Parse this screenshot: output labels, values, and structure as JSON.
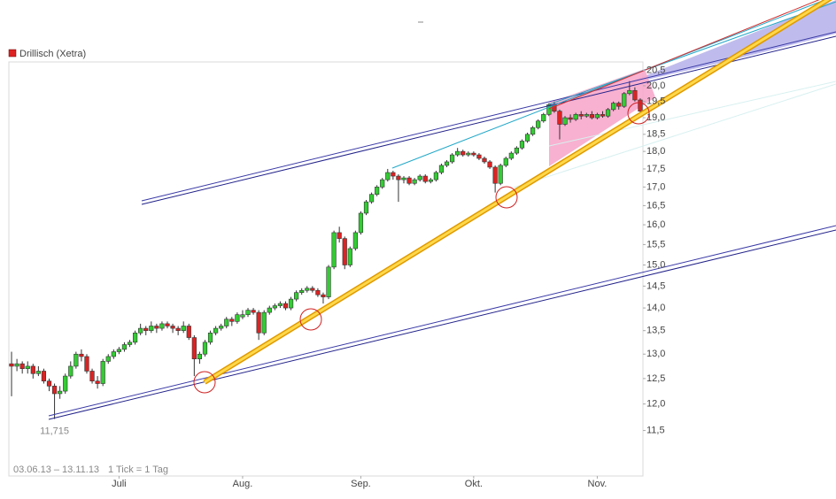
{
  "chart_data": {
    "type": "candlestick",
    "series_name": "Drillisch (Xetra)",
    "legend_color": "#dd2222",
    "up_color": "#33cc33",
    "down_color": "#dd2222",
    "date_range": "03.06.13 – 13.11.13",
    "tick_note": "1 Tick = 1 Tag",
    "log_scale": true,
    "ylim": [
      10.69,
      20.78
    ],
    "yticks": [
      {
        "value": 11.5,
        "label": "11,5"
      },
      {
        "value": 12,
        "label": "12,0"
      },
      {
        "value": 12.5,
        "label": "12,5"
      },
      {
        "value": 13,
        "label": "13,0"
      },
      {
        "value": 13.5,
        "label": "13,5"
      },
      {
        "value": 14,
        "label": "14,0"
      },
      {
        "value": 14.5,
        "label": "14,5"
      },
      {
        "value": 15,
        "label": "15,0"
      },
      {
        "value": 15.5,
        "label": "15,5"
      },
      {
        "value": 16,
        "label": "16,0"
      },
      {
        "value": 16.5,
        "label": "16,5"
      },
      {
        "value": 17,
        "label": "17,0"
      },
      {
        "value": 17.5,
        "label": "17,5"
      },
      {
        "value": 18,
        "label": "18,0"
      },
      {
        "value": 18.5,
        "label": "18,5"
      },
      {
        "value": 19,
        "label": "19,0"
      },
      {
        "value": 19.5,
        "label": "19,5"
      },
      {
        "value": 20,
        "label": "20,0"
      },
      {
        "value": 20.5,
        "label": "20,5"
      }
    ],
    "xticks": [
      {
        "value": "2013-07-01",
        "label": "Juli"
      },
      {
        "value": "2013-08-01",
        "label": "Aug."
      },
      {
        "value": "2013-09-02",
        "label": "Sep."
      },
      {
        "value": "2013-10-01",
        "label": "Okt."
      },
      {
        "value": "2013-11-01",
        "label": "Nov."
      }
    ],
    "annotations": [
      {
        "label": "11,715",
        "value": 11.715,
        "x": "2013-06-13"
      }
    ],
    "x": [
      "2013-06-03",
      "2013-06-04",
      "2013-06-05",
      "2013-06-06",
      "2013-06-07",
      "2013-06-10",
      "2013-06-11",
      "2013-06-12",
      "2013-06-13",
      "2013-06-14",
      "2013-06-17",
      "2013-06-18",
      "2013-06-19",
      "2013-06-20",
      "2013-06-21",
      "2013-06-24",
      "2013-06-25",
      "2013-06-26",
      "2013-06-27",
      "2013-06-28",
      "2013-07-01",
      "2013-07-02",
      "2013-07-03",
      "2013-07-04",
      "2013-07-05",
      "2013-07-08",
      "2013-07-09",
      "2013-07-10",
      "2013-07-11",
      "2013-07-12",
      "2013-07-15",
      "2013-07-16",
      "2013-07-17",
      "2013-07-18",
      "2013-07-19",
      "2013-07-22",
      "2013-07-23",
      "2013-07-24",
      "2013-07-25",
      "2013-07-26",
      "2013-07-29",
      "2013-07-30",
      "2013-07-31",
      "2013-08-01",
      "2013-08-02",
      "2013-08-05",
      "2013-08-06",
      "2013-08-07",
      "2013-08-08",
      "2013-08-09",
      "2013-08-12",
      "2013-08-13",
      "2013-08-14",
      "2013-08-15",
      "2013-08-16",
      "2013-08-19",
      "2013-08-20",
      "2013-08-21",
      "2013-08-22",
      "2013-08-23",
      "2013-08-26",
      "2013-08-27",
      "2013-08-28",
      "2013-08-29",
      "2013-08-30",
      "2013-09-02",
      "2013-09-03",
      "2013-09-04",
      "2013-09-05",
      "2013-09-06",
      "2013-09-09",
      "2013-09-10",
      "2013-09-11",
      "2013-09-12",
      "2013-09-13",
      "2013-09-16",
      "2013-09-17",
      "2013-09-18",
      "2013-09-19",
      "2013-09-20",
      "2013-09-23",
      "2013-09-24",
      "2013-09-25",
      "2013-09-26",
      "2013-09-27",
      "2013-09-30",
      "2013-10-01",
      "2013-10-02",
      "2013-10-03",
      "2013-10-04",
      "2013-10-07",
      "2013-10-08",
      "2013-10-09",
      "2013-10-10",
      "2013-10-11",
      "2013-10-14",
      "2013-10-15",
      "2013-10-16",
      "2013-10-17",
      "2013-10-18",
      "2013-10-21",
      "2013-10-22",
      "2013-10-23",
      "2013-10-24",
      "2013-10-25",
      "2013-10-28",
      "2013-10-29",
      "2013-10-30",
      "2013-10-31",
      "2013-11-01",
      "2013-11-04",
      "2013-11-05",
      "2013-11-06",
      "2013-11-07",
      "2013-11-08",
      "2013-11-11",
      "2013-11-12",
      "2013-11-13"
    ],
    "ohlc": [
      [
        12.8,
        13.05,
        12.15,
        12.75
      ],
      [
        12.75,
        12.9,
        12.65,
        12.8
      ],
      [
        12.8,
        12.85,
        12.6,
        12.7
      ],
      [
        12.7,
        12.85,
        12.6,
        12.75
      ],
      [
        12.75,
        12.8,
        12.5,
        12.6
      ],
      [
        12.6,
        12.75,
        12.55,
        12.65
      ],
      [
        12.65,
        12.7,
        12.4,
        12.45
      ],
      [
        12.45,
        12.5,
        12.25,
        12.35
      ],
      [
        12.35,
        12.4,
        11.715,
        12.2
      ],
      [
        12.2,
        12.35,
        12.1,
        12.25
      ],
      [
        12.25,
        12.6,
        12.2,
        12.55
      ],
      [
        12.55,
        12.85,
        12.5,
        12.75
      ],
      [
        12.75,
        13.05,
        12.7,
        13.0
      ],
      [
        13.0,
        13.1,
        12.85,
        12.95
      ],
      [
        12.95,
        13.0,
        12.6,
        12.65
      ],
      [
        12.65,
        12.7,
        12.4,
        12.45
      ],
      [
        12.45,
        12.55,
        12.3,
        12.4
      ],
      [
        12.4,
        12.9,
        12.35,
        12.85
      ],
      [
        12.85,
        13.0,
        12.8,
        12.95
      ],
      [
        12.95,
        13.1,
        12.9,
        13.05
      ],
      [
        13.05,
        13.15,
        13.0,
        13.1
      ],
      [
        13.1,
        13.25,
        13.05,
        13.2
      ],
      [
        13.2,
        13.3,
        13.15,
        13.25
      ],
      [
        13.25,
        13.5,
        13.2,
        13.45
      ],
      [
        13.45,
        13.65,
        13.4,
        13.55
      ],
      [
        13.55,
        13.6,
        13.4,
        13.5
      ],
      [
        13.5,
        13.7,
        13.45,
        13.6
      ],
      [
        13.6,
        13.65,
        13.45,
        13.55
      ],
      [
        13.55,
        13.7,
        13.5,
        13.65
      ],
      [
        13.65,
        13.7,
        13.55,
        13.6
      ],
      [
        13.6,
        13.65,
        13.45,
        13.55
      ],
      [
        13.55,
        13.6,
        13.4,
        13.5
      ],
      [
        13.5,
        13.7,
        13.45,
        13.6
      ],
      [
        13.6,
        13.65,
        13.3,
        13.35
      ],
      [
        13.35,
        13.4,
        12.55,
        12.9
      ],
      [
        12.9,
        13.05,
        12.8,
        13.0
      ],
      [
        13.0,
        13.3,
        12.95,
        13.25
      ],
      [
        13.25,
        13.5,
        13.2,
        13.45
      ],
      [
        13.45,
        13.6,
        13.4,
        13.55
      ],
      [
        13.55,
        13.65,
        13.5,
        13.6
      ],
      [
        13.6,
        13.8,
        13.55,
        13.75
      ],
      [
        13.75,
        13.8,
        13.6,
        13.7
      ],
      [
        13.7,
        13.9,
        13.65,
        13.85
      ],
      [
        13.8,
        13.95,
        13.75,
        13.85
      ],
      [
        13.85,
        14.0,
        13.8,
        13.95
      ],
      [
        13.95,
        14.0,
        13.85,
        13.9
      ],
      [
        13.9,
        13.95,
        13.3,
        13.45
      ],
      [
        13.45,
        13.95,
        13.4,
        13.9
      ],
      [
        13.9,
        14.05,
        13.85,
        14.0
      ],
      [
        14.0,
        14.1,
        13.95,
        14.05
      ],
      [
        14.05,
        14.15,
        14.0,
        14.1
      ],
      [
        14.1,
        14.15,
        13.95,
        14.0
      ],
      [
        14.0,
        14.25,
        13.95,
        14.2
      ],
      [
        14.2,
        14.4,
        14.15,
        14.35
      ],
      [
        14.35,
        14.45,
        14.3,
        14.4
      ],
      [
        14.4,
        14.5,
        14.35,
        14.45
      ],
      [
        14.45,
        14.5,
        14.35,
        14.4
      ],
      [
        14.4,
        14.45,
        14.25,
        14.3
      ],
      [
        14.3,
        14.35,
        14.1,
        14.25
      ],
      [
        14.25,
        15.0,
        14.2,
        14.95
      ],
      [
        14.95,
        15.85,
        14.9,
        15.8
      ],
      [
        15.8,
        15.95,
        15.55,
        15.65
      ],
      [
        15.65,
        15.7,
        14.9,
        15.0
      ],
      [
        15.0,
        15.45,
        14.95,
        15.4
      ],
      [
        15.4,
        15.85,
        15.35,
        15.8
      ],
      [
        15.8,
        16.35,
        15.75,
        16.3
      ],
      [
        16.3,
        16.65,
        16.25,
        16.6
      ],
      [
        16.6,
        16.85,
        16.55,
        16.8
      ],
      [
        16.8,
        17.05,
        16.75,
        17.0
      ],
      [
        17.0,
        17.25,
        16.95,
        17.2
      ],
      [
        17.2,
        17.5,
        17.15,
        17.4
      ],
      [
        17.4,
        17.45,
        17.2,
        17.3
      ],
      [
        17.3,
        17.35,
        16.6,
        17.2
      ],
      [
        17.2,
        17.3,
        17.1,
        17.25
      ],
      [
        17.25,
        17.3,
        17.05,
        17.1
      ],
      [
        17.1,
        17.25,
        17.05,
        17.2
      ],
      [
        17.2,
        17.35,
        17.15,
        17.3
      ],
      [
        17.3,
        17.35,
        17.1,
        17.15
      ],
      [
        17.15,
        17.25,
        17.1,
        17.2
      ],
      [
        17.2,
        17.45,
        17.15,
        17.4
      ],
      [
        17.4,
        17.65,
        17.35,
        17.6
      ],
      [
        17.6,
        17.75,
        17.55,
        17.7
      ],
      [
        17.7,
        17.95,
        17.65,
        17.9
      ],
      [
        17.9,
        18.1,
        17.85,
        18.0
      ],
      [
        18.0,
        18.05,
        17.85,
        17.9
      ],
      [
        17.9,
        18.0,
        17.85,
        17.95
      ],
      [
        17.95,
        18.0,
        17.85,
        17.9
      ],
      [
        17.9,
        17.95,
        17.75,
        17.8
      ],
      [
        17.8,
        17.85,
        17.65,
        17.7
      ],
      [
        17.7,
        17.75,
        17.5,
        17.55
      ],
      [
        17.55,
        17.6,
        16.85,
        17.1
      ],
      [
        17.1,
        17.65,
        17.05,
        17.6
      ],
      [
        17.6,
        17.85,
        17.55,
        17.8
      ],
      [
        17.8,
        18.0,
        17.75,
        17.95
      ],
      [
        17.95,
        18.15,
        17.9,
        18.1
      ],
      [
        18.1,
        18.35,
        18.05,
        18.3
      ],
      [
        18.3,
        18.55,
        18.25,
        18.5
      ],
      [
        18.5,
        18.75,
        18.45,
        18.7
      ],
      [
        18.7,
        18.95,
        18.65,
        18.9
      ],
      [
        18.9,
        19.15,
        18.85,
        19.1
      ],
      [
        19.1,
        19.45,
        19.05,
        19.4
      ],
      [
        19.4,
        19.5,
        19.15,
        19.2
      ],
      [
        19.2,
        19.25,
        18.35,
        18.8
      ],
      [
        18.8,
        19.05,
        18.75,
        19.0
      ],
      [
        19.0,
        19.1,
        18.85,
        18.95
      ],
      [
        18.95,
        19.15,
        18.9,
        19.1
      ],
      [
        19.1,
        19.2,
        18.95,
        19.05
      ],
      [
        19.05,
        19.15,
        19.0,
        19.1
      ],
      [
        19.1,
        19.2,
        18.95,
        19.0
      ],
      [
        19.0,
        19.15,
        18.95,
        19.1
      ],
      [
        19.1,
        19.2,
        19.0,
        19.05
      ],
      [
        19.05,
        19.3,
        19.0,
        19.25
      ],
      [
        19.25,
        19.5,
        19.2,
        19.45
      ],
      [
        19.45,
        19.5,
        19.25,
        19.35
      ],
      [
        19.35,
        19.8,
        19.3,
        19.75
      ],
      [
        19.75,
        20.15,
        19.7,
        19.85
      ],
      [
        19.85,
        19.95,
        19.5,
        19.55
      ],
      [
        19.55,
        19.6,
        19.1,
        19.2
      ]
    ]
  }
}
